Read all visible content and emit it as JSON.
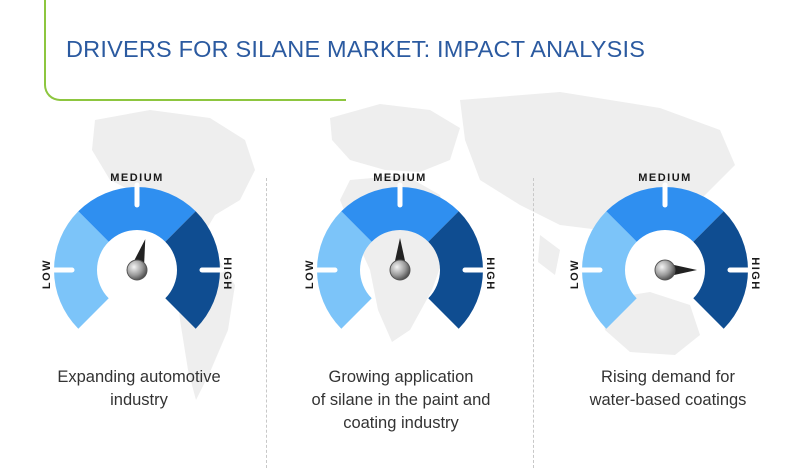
{
  "title": "DRIVERS FOR SILANE MARKET: IMPACT ANALYSIS",
  "colors": {
    "title": "#2b5aa0",
    "accent_line": "#8dc63f",
    "low": "#7cc4f9",
    "medium": "#2f8ff0",
    "high": "#0f4d91",
    "map": "#eeeeee"
  },
  "gauges": [
    {
      "medium_label": "MEDIUM",
      "low_label": "LOW",
      "high_label": "HIGH",
      "impact": "medium-high",
      "caption_lines": [
        "Expanding automotive",
        "industry"
      ]
    },
    {
      "medium_label": "MEDIUM",
      "low_label": "LOW",
      "high_label": "HIGH",
      "impact": "medium",
      "caption_lines": [
        "Growing application",
        "of silane in the paint and",
        "coating industry"
      ]
    },
    {
      "medium_label": "MEDIUM",
      "low_label": "LOW",
      "high_label": "HIGH",
      "impact": "high",
      "caption_lines": [
        "Rising demand for",
        "water-based coatings"
      ]
    }
  ]
}
